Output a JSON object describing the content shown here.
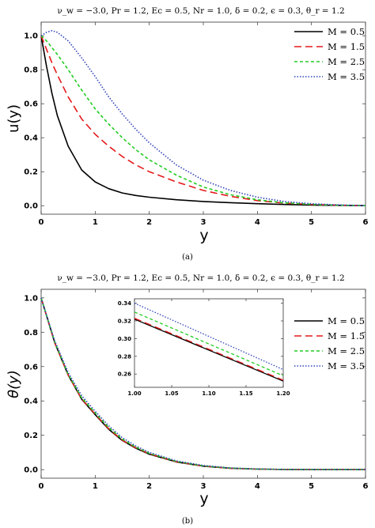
{
  "chart_data": [
    {
      "type": "line",
      "panel_label": "(a)",
      "title": "ν_w = −3.0, Pr = 1.2, Ec = 0.5, Nr = 1.0, δ = 0.2, ϵ = 0.3, θ_r = 1.2",
      "xlabel": "y",
      "ylabel": "u(y)",
      "xlim": [
        0,
        6
      ],
      "ylim": [
        -0.05,
        1.08
      ],
      "xticks": [
        "0",
        "1",
        "2",
        "3",
        "4",
        "5",
        "6"
      ],
      "yticks": [
        "0.0",
        "0.2",
        "0.4",
        "0.6",
        "0.8",
        "1.0"
      ],
      "legend_position": "top-right",
      "x": [
        0,
        0.1,
        0.2,
        0.3,
        0.5,
        0.75,
        1.0,
        1.25,
        1.5,
        1.75,
        2.0,
        2.5,
        3.0,
        3.5,
        4.0,
        4.5,
        5.0,
        5.5,
        6.0
      ],
      "series": [
        {
          "name": "M = 0.5",
          "color": "#000000",
          "dash": "solid",
          "values": [
            1.0,
            0.82,
            0.66,
            0.53,
            0.35,
            0.21,
            0.14,
            0.1,
            0.075,
            0.06,
            0.05,
            0.035,
            0.025,
            0.018,
            0.012,
            0.007,
            0.004,
            0.002,
            0.0
          ]
        },
        {
          "name": "M = 1.5",
          "color": "#e41a1c",
          "dash": "long",
          "values": [
            1.0,
            0.92,
            0.84,
            0.77,
            0.64,
            0.51,
            0.42,
            0.35,
            0.29,
            0.24,
            0.2,
            0.14,
            0.09,
            0.055,
            0.03,
            0.015,
            0.007,
            0.003,
            0.0
          ]
        },
        {
          "name": "M = 2.5",
          "color": "#22cc22",
          "dash": "short",
          "values": [
            1.0,
            0.97,
            0.93,
            0.89,
            0.8,
            0.68,
            0.57,
            0.48,
            0.4,
            0.33,
            0.27,
            0.18,
            0.11,
            0.065,
            0.035,
            0.017,
            0.008,
            0.003,
            0.0
          ]
        },
        {
          "name": "M = 3.5",
          "color": "#3344bb",
          "dash": "dot",
          "values": [
            1.0,
            1.02,
            1.03,
            1.02,
            0.97,
            0.87,
            0.76,
            0.64,
            0.54,
            0.45,
            0.37,
            0.24,
            0.15,
            0.09,
            0.05,
            0.025,
            0.012,
            0.005,
            0.0
          ]
        }
      ]
    },
    {
      "type": "line",
      "panel_label": "(b)",
      "title": "ν_w = −3.0, Pr = 1.2, Ec = 0.5, Nr = 1.0, δ = 0.2, ϵ = 0.3, θ_r = 1.2",
      "xlabel": "y",
      "ylabel": "θ(y)",
      "xlim": [
        0,
        6
      ],
      "ylim": [
        -0.05,
        1.05
      ],
      "xticks": [
        "0",
        "1",
        "2",
        "3",
        "4",
        "5",
        "6"
      ],
      "yticks": [
        "0.0",
        "0.2",
        "0.4",
        "0.6",
        "0.8",
        "1.0"
      ],
      "legend_position": "top-right",
      "x": [
        0,
        0.25,
        0.5,
        0.75,
        1.0,
        1.25,
        1.5,
        1.75,
        2.0,
        2.5,
        3.0,
        3.5,
        4.0,
        4.5,
        5.0,
        5.5,
        6.0
      ],
      "series": [
        {
          "name": "M = 0.5",
          "color": "#000000",
          "dash": "solid",
          "values": [
            1.0,
            0.74,
            0.55,
            0.41,
            0.32,
            0.235,
            0.17,
            0.125,
            0.09,
            0.045,
            0.02,
            0.008,
            0.003,
            0.001,
            0.0,
            0.0,
            0.0
          ]
        },
        {
          "name": "M = 1.5",
          "color": "#e41a1c",
          "dash": "long",
          "values": [
            1.0,
            0.74,
            0.55,
            0.412,
            0.323,
            0.238,
            0.172,
            0.127,
            0.092,
            0.046,
            0.021,
            0.008,
            0.003,
            0.001,
            0.0,
            0.0,
            0.0
          ]
        },
        {
          "name": "M = 2.5",
          "color": "#22cc22",
          "dash": "short",
          "values": [
            1.0,
            0.745,
            0.555,
            0.418,
            0.33,
            0.245,
            0.178,
            0.131,
            0.095,
            0.048,
            0.022,
            0.009,
            0.003,
            0.001,
            0.0,
            0.0,
            0.0
          ]
        },
        {
          "name": "M = 3.5",
          "color": "#3344bb",
          "dash": "dot",
          "values": [
            1.0,
            0.75,
            0.565,
            0.43,
            0.34,
            0.255,
            0.186,
            0.138,
            0.1,
            0.051,
            0.024,
            0.01,
            0.004,
            0.001,
            0.0,
            0.0,
            0.0
          ]
        }
      ],
      "inset": {
        "xlim": [
          1.0,
          1.2
        ],
        "ylim": [
          0.245,
          0.345
        ],
        "xticks": [
          "1.00",
          "1.05",
          "1.10",
          "1.15",
          "1.20"
        ],
        "yticks": [
          "0.26",
          "0.28",
          "0.30",
          "0.32",
          "0.34"
        ],
        "x": [
          1.0,
          1.2
        ],
        "series": [
          {
            "name": "M = 0.5",
            "color": "#000000",
            "dash": "solid",
            "values": [
              0.322,
              0.252
            ]
          },
          {
            "name": "M = 1.5",
            "color": "#e41a1c",
            "dash": "long",
            "values": [
              0.323,
              0.253
            ]
          },
          {
            "name": "M = 2.5",
            "color": "#22cc22",
            "dash": "short",
            "values": [
              0.33,
              0.258
            ]
          },
          {
            "name": "M = 3.5",
            "color": "#3344bb",
            "dash": "dot",
            "values": [
              0.34,
              0.265
            ]
          }
        ]
      }
    }
  ]
}
